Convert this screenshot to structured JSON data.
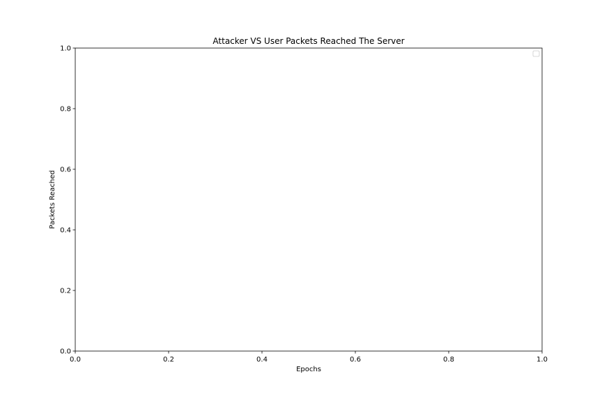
{
  "chart_data": {
    "type": "line",
    "title": "Attacker VS User Packets Reached The Server",
    "xlabel": "Epochs",
    "ylabel": "Packets Reached",
    "xlim": [
      0.0,
      1.0
    ],
    "ylim": [
      0.0,
      1.0
    ],
    "xticks": [
      "0.0",
      "0.2",
      "0.4",
      "0.6",
      "0.8",
      "1.0"
    ],
    "yticks": [
      "0.0",
      "0.2",
      "0.4",
      "0.6",
      "0.8",
      "1.0"
    ],
    "xtick_values": [
      0.0,
      0.2,
      0.4,
      0.6,
      0.8,
      1.0
    ],
    "ytick_values": [
      0.0,
      0.2,
      0.4,
      0.6,
      0.8,
      1.0
    ],
    "series": [],
    "legend": {
      "placement": "upper right",
      "entries": []
    },
    "grid": false
  }
}
